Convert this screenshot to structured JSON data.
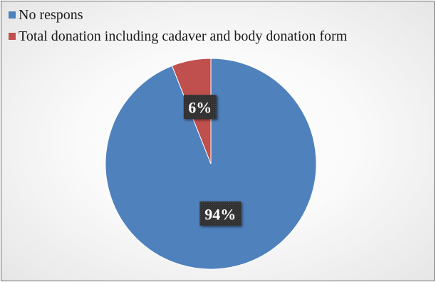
{
  "chart_data": {
    "type": "pie",
    "title": "",
    "categories": [
      "No respons",
      "Total donation including cadaver and body donation form"
    ],
    "values": [
      94,
      6
    ],
    "data_labels": [
      "94%",
      "6%"
    ],
    "colors": [
      "#4f81bd",
      "#c0504d"
    ],
    "legend_position": "top-left",
    "label_box_color": "#333333"
  }
}
